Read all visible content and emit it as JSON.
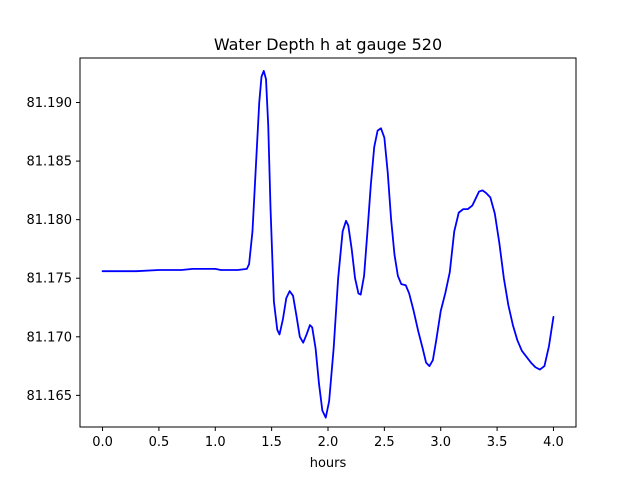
{
  "chart_data": {
    "type": "line",
    "title": "Water Depth h at gauge 520",
    "xlabel": "hours",
    "ylabel": "",
    "xlim": [
      -0.2,
      4.2
    ],
    "ylim": [
      81.1623,
      81.1938
    ],
    "x_ticks": [
      0.0,
      0.5,
      1.0,
      1.5,
      2.0,
      2.5,
      3.0,
      3.5,
      4.0
    ],
    "x_tick_labels": [
      "0.0",
      "0.5",
      "1.0",
      "1.5",
      "2.0",
      "2.5",
      "3.0",
      "3.5",
      "4.0"
    ],
    "y_ticks": [
      81.165,
      81.17,
      81.175,
      81.18,
      81.185,
      81.19
    ],
    "y_tick_labels": [
      "81.165",
      "81.170",
      "81.175",
      "81.180",
      "81.185",
      "81.190"
    ],
    "grid": false,
    "series": [
      {
        "color": "#0000ff",
        "points": [
          [
            0.0,
            81.1756
          ],
          [
            0.1,
            81.1756
          ],
          [
            0.3,
            81.1756
          ],
          [
            0.5,
            81.1757
          ],
          [
            0.7,
            81.1757
          ],
          [
            0.8,
            81.1758
          ],
          [
            0.9,
            81.1758
          ],
          [
            1.0,
            81.1758
          ],
          [
            1.05,
            81.1757
          ],
          [
            1.2,
            81.1757
          ],
          [
            1.28,
            81.1758
          ],
          [
            1.3,
            81.1762
          ],
          [
            1.33,
            81.179
          ],
          [
            1.36,
            81.1845
          ],
          [
            1.39,
            81.19
          ],
          [
            1.41,
            81.1922
          ],
          [
            1.43,
            81.1927
          ],
          [
            1.45,
            81.192
          ],
          [
            1.47,
            81.188
          ],
          [
            1.49,
            81.181
          ],
          [
            1.52,
            81.173
          ],
          [
            1.55,
            81.1706
          ],
          [
            1.57,
            81.1702
          ],
          [
            1.6,
            81.1715
          ],
          [
            1.63,
            81.1733
          ],
          [
            1.66,
            81.1739
          ],
          [
            1.69,
            81.1735
          ],
          [
            1.72,
            81.1718
          ],
          [
            1.75,
            81.17
          ],
          [
            1.78,
            81.1695
          ],
          [
            1.81,
            81.1702
          ],
          [
            1.84,
            81.171
          ],
          [
            1.86,
            81.1708
          ],
          [
            1.89,
            81.169
          ],
          [
            1.92,
            81.166
          ],
          [
            1.95,
            81.1637
          ],
          [
            1.98,
            81.1631
          ],
          [
            2.01,
            81.1645
          ],
          [
            2.05,
            81.169
          ],
          [
            2.09,
            81.175
          ],
          [
            2.13,
            81.179
          ],
          [
            2.16,
            81.1799
          ],
          [
            2.18,
            81.1795
          ],
          [
            2.21,
            81.1775
          ],
          [
            2.24,
            81.175
          ],
          [
            2.27,
            81.1737
          ],
          [
            2.29,
            81.1736
          ],
          [
            2.32,
            81.1752
          ],
          [
            2.35,
            81.179
          ],
          [
            2.38,
            81.183
          ],
          [
            2.41,
            81.1862
          ],
          [
            2.44,
            81.1876
          ],
          [
            2.47,
            81.1878
          ],
          [
            2.5,
            81.187
          ],
          [
            2.53,
            81.184
          ],
          [
            2.56,
            81.18
          ],
          [
            2.59,
            81.177
          ],
          [
            2.62,
            81.1752
          ],
          [
            2.65,
            81.1745
          ],
          [
            2.69,
            81.1744
          ],
          [
            2.72,
            81.1737
          ],
          [
            2.76,
            81.1722
          ],
          [
            2.8,
            81.1705
          ],
          [
            2.84,
            81.169
          ],
          [
            2.87,
            81.1678
          ],
          [
            2.9,
            81.1675
          ],
          [
            2.93,
            81.168
          ],
          [
            2.96,
            81.1697
          ],
          [
            3.0,
            81.1722
          ],
          [
            3.04,
            81.1737
          ],
          [
            3.08,
            81.1755
          ],
          [
            3.12,
            81.179
          ],
          [
            3.16,
            81.1806
          ],
          [
            3.2,
            81.1809
          ],
          [
            3.24,
            81.1809
          ],
          [
            3.28,
            81.1812
          ],
          [
            3.31,
            81.1818
          ],
          [
            3.34,
            81.1824
          ],
          [
            3.37,
            81.1825
          ],
          [
            3.4,
            81.1823
          ],
          [
            3.44,
            81.1819
          ],
          [
            3.48,
            81.1805
          ],
          [
            3.52,
            81.178
          ],
          [
            3.56,
            81.175
          ],
          [
            3.6,
            81.1727
          ],
          [
            3.64,
            81.171
          ],
          [
            3.68,
            81.1697
          ],
          [
            3.72,
            81.1688
          ],
          [
            3.76,
            81.1683
          ],
          [
            3.8,
            81.1678
          ],
          [
            3.84,
            81.1674
          ],
          [
            3.88,
            81.1672
          ],
          [
            3.92,
            81.1675
          ],
          [
            3.96,
            81.1692
          ],
          [
            4.0,
            81.1717
          ]
        ]
      }
    ]
  }
}
